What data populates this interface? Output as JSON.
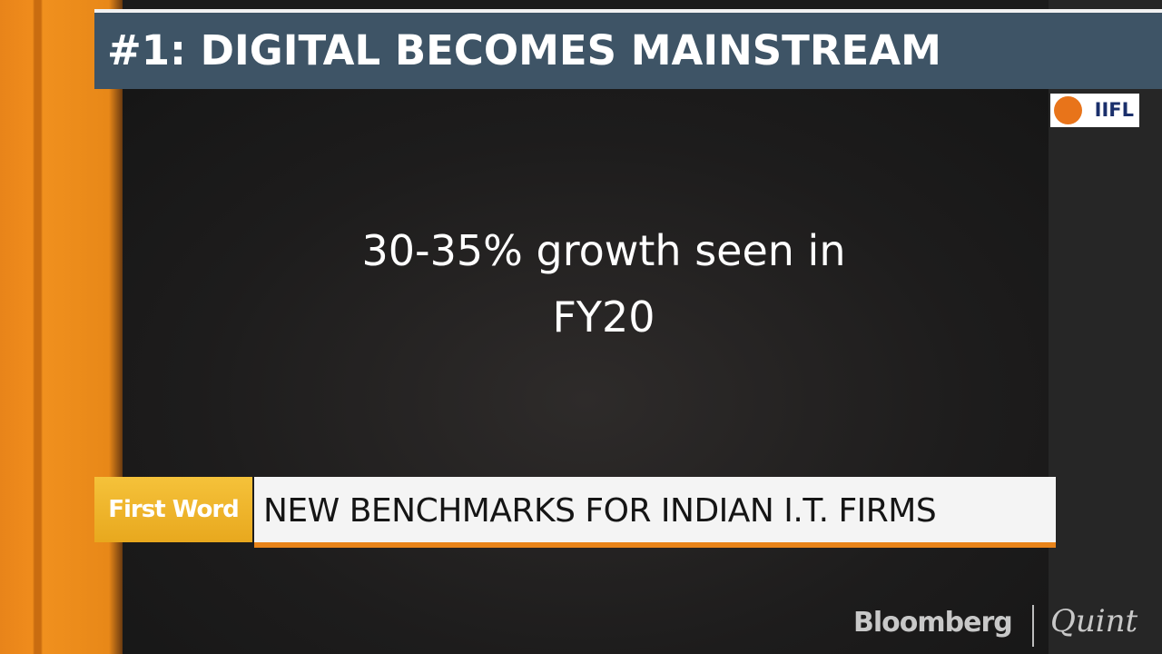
{
  "header": {
    "title": "#1: DIGITAL BECOMES MAINSTREAM",
    "logo": "IIFL"
  },
  "body": {
    "lines": [
      "30-35% growth seen in",
      "FY20"
    ]
  },
  "lower_third": {
    "tag": "First Word",
    "headline": "NEW BENCHMARKS FOR INDIAN I.T. FIRMS"
  },
  "branding": {
    "left": "Bloomberg",
    "right": "Quint"
  }
}
